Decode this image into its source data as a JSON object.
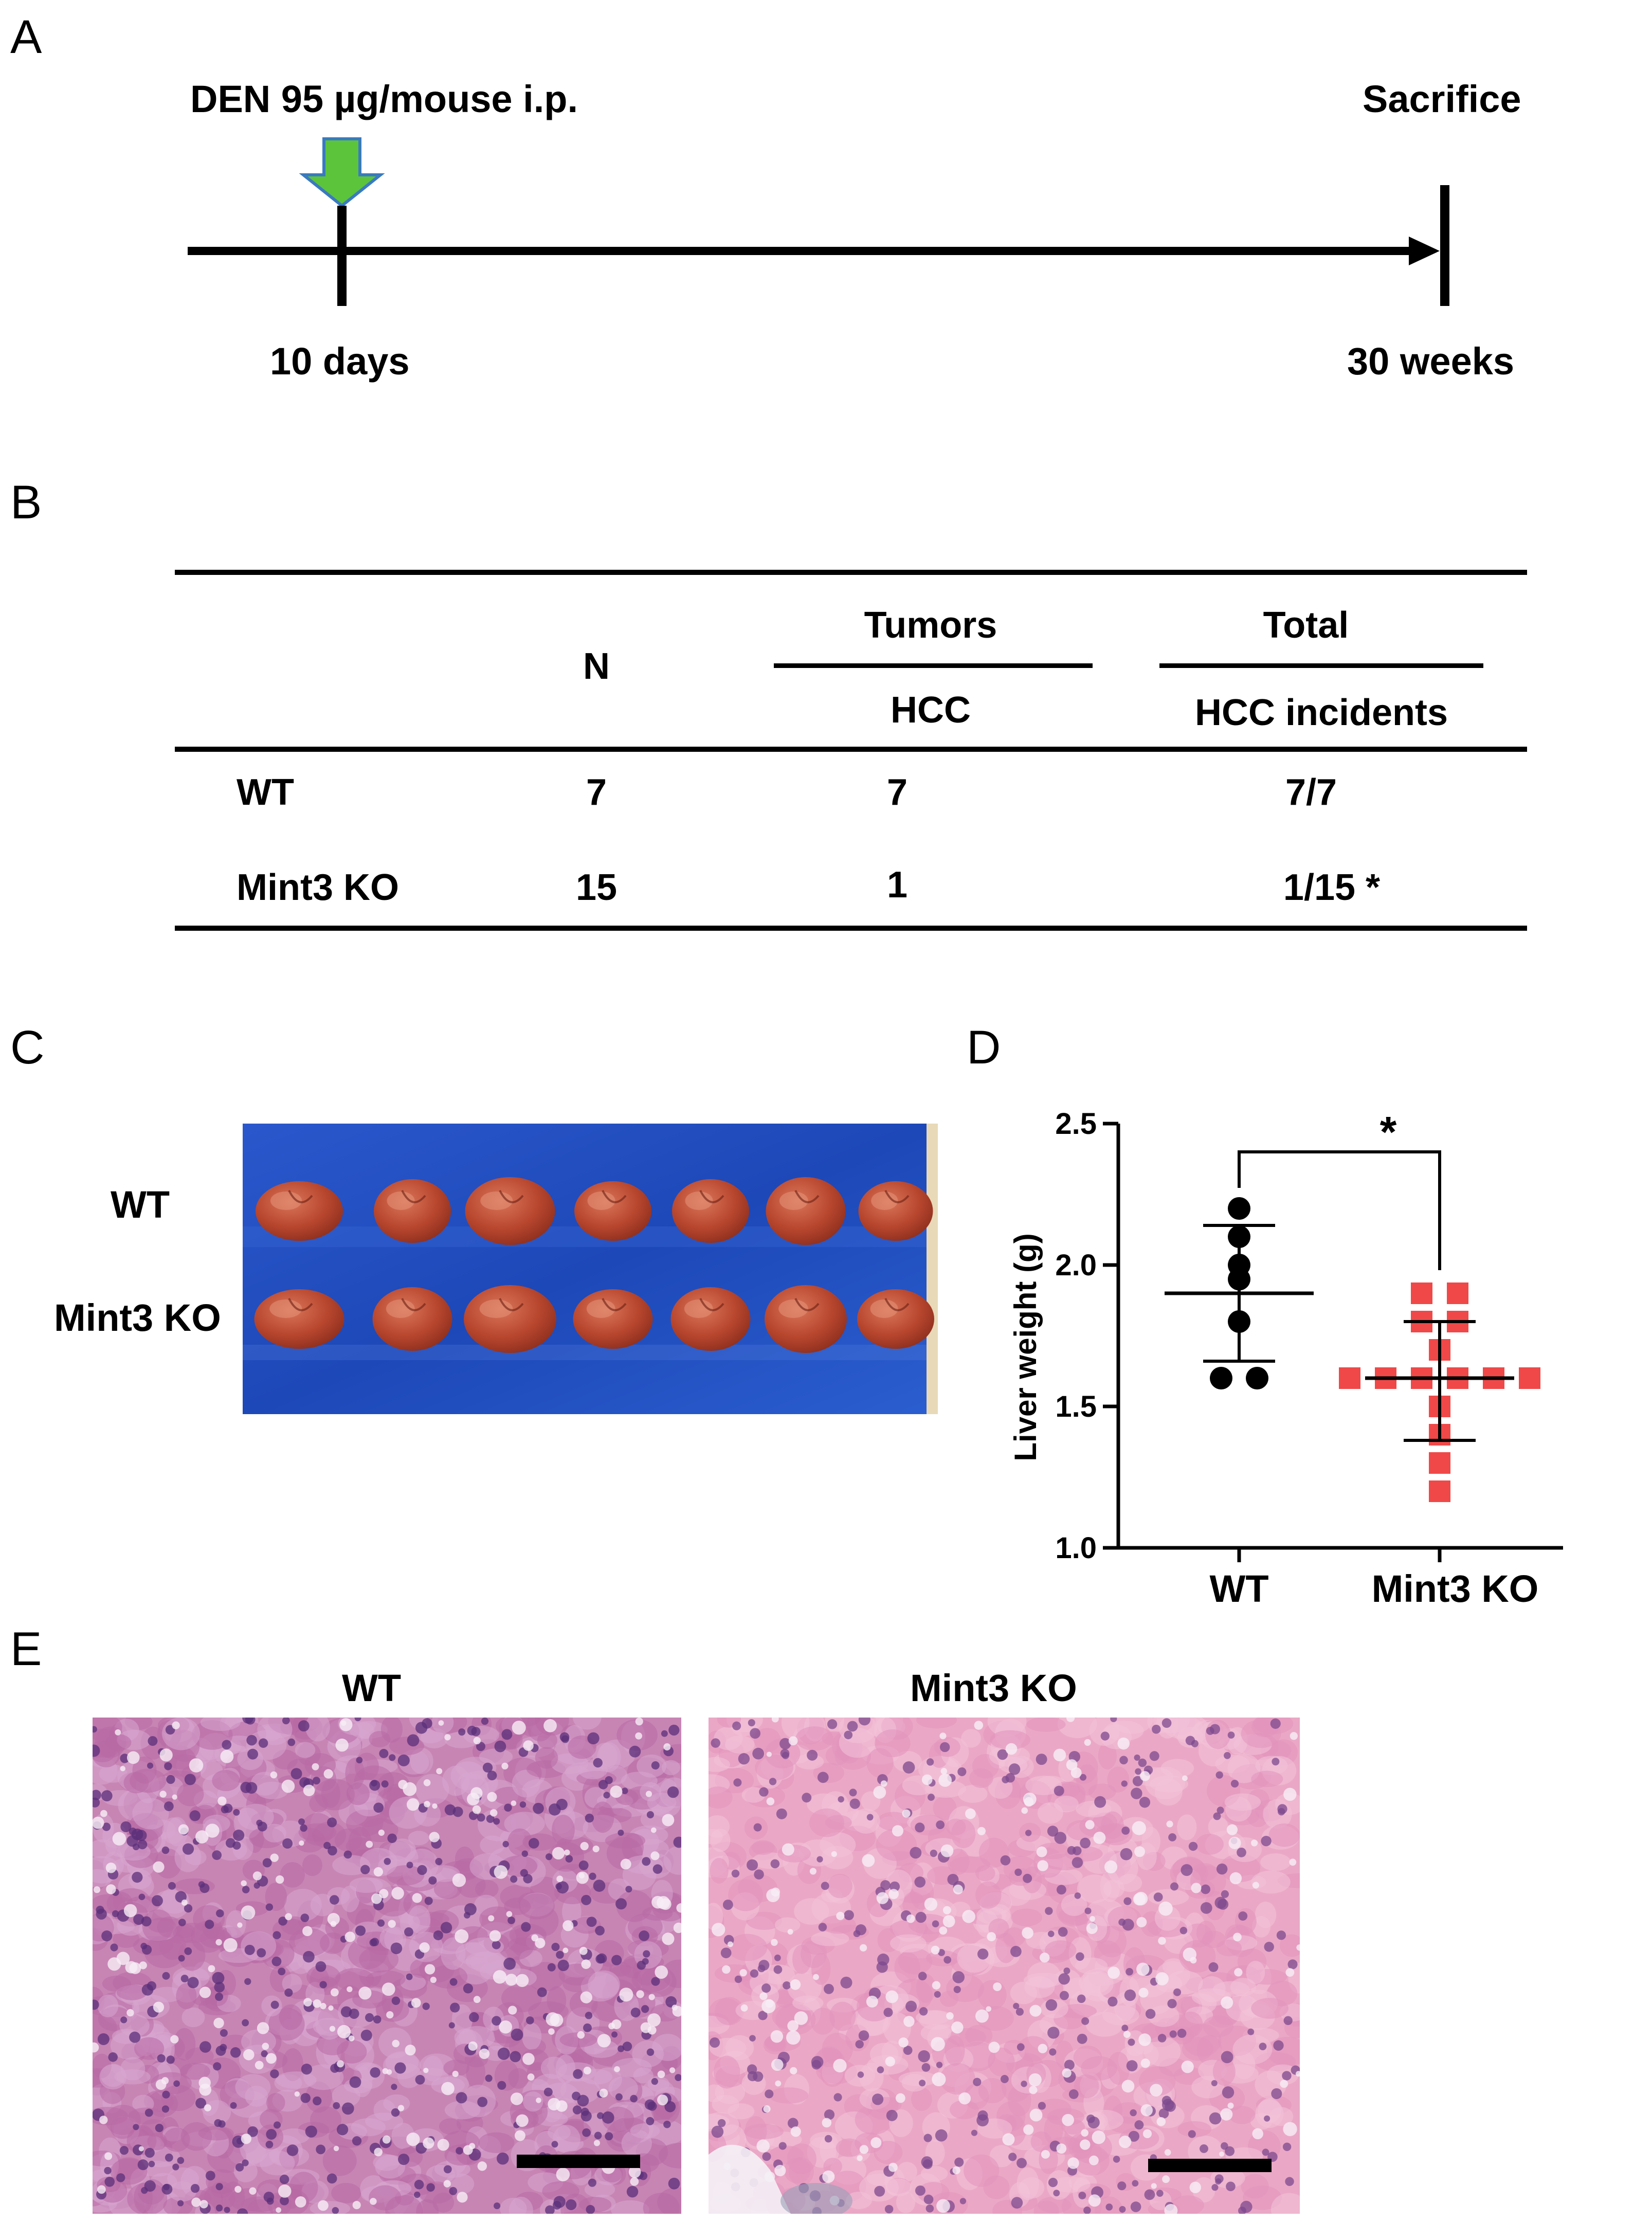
{
  "panels": {
    "a": "A",
    "b": "B",
    "c": "C",
    "d": "D",
    "e": "E"
  },
  "timeline": {
    "treatment": "DEN 95 µg/mouse  i.p.",
    "endpoint": "Sacrifice",
    "start_time": "10 days",
    "end_time": "30 weeks",
    "arrow_color": "#5cc43a"
  },
  "table": {
    "headers": {
      "n": "N",
      "tumors": "Tumors",
      "tumors_sub": "HCC",
      "total": "Total",
      "total_sub": "HCC incidents"
    },
    "rows": [
      {
        "group": "WT",
        "n": "7",
        "hcc": "7",
        "incidents": "7/7"
      },
      {
        "group": "Mint3 KO",
        "n": "15",
        "hcc": "1",
        "incidents": "1/15 *"
      }
    ]
  },
  "photo": {
    "row_labels": [
      "WT",
      "Mint3 KO"
    ],
    "background_color": "#1f4fc0",
    "liver_color": "#b8462e"
  },
  "chart_data": {
    "type": "scatter",
    "ylabel": "Liver weight (g)",
    "ylim": [
      1.0,
      2.5
    ],
    "yticks": [
      "1.0",
      "1.5",
      "2.0",
      "2.5"
    ],
    "categories": [
      "WT",
      "Mint3 KO"
    ],
    "significance": "*",
    "series": [
      {
        "category": "WT",
        "marker": "circle",
        "color": "#000000",
        "mean": 1.9,
        "sd_low": 1.66,
        "sd_high": 2.14,
        "points": [
          2.2,
          2.1,
          2.0,
          1.95,
          1.8,
          1.6,
          1.6
        ]
      },
      {
        "category": "Mint3 KO",
        "marker": "square",
        "color": "#f04848",
        "mean": 1.6,
        "sd_low": 1.38,
        "sd_high": 1.8,
        "points": [
          1.9,
          1.9,
          1.8,
          1.8,
          1.7,
          1.6,
          1.6,
          1.6,
          1.6,
          1.6,
          1.6,
          1.5,
          1.4,
          1.3,
          1.2
        ]
      }
    ]
  },
  "histology": {
    "labels": [
      "WT",
      "Mint3 KO"
    ],
    "wt_tint": "#c27aaf",
    "ko_tint": "#e9a3c3"
  }
}
